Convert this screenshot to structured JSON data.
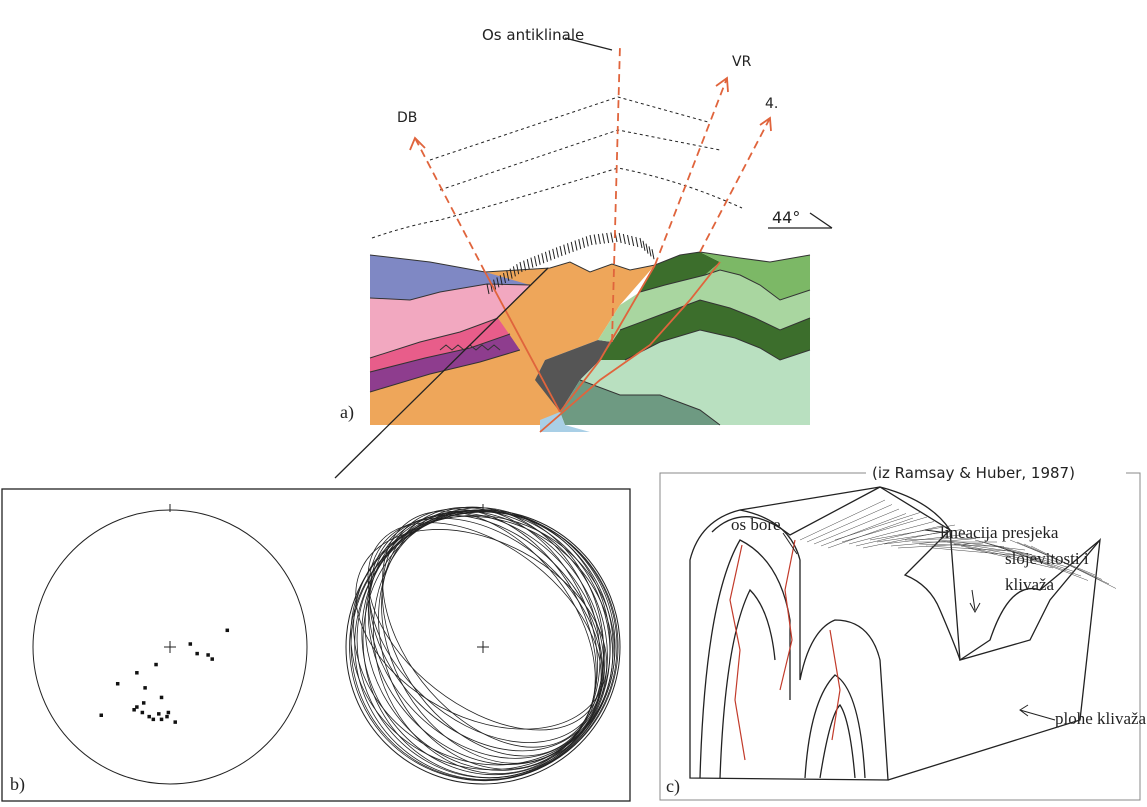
{
  "panel_a": {
    "label": "a)",
    "axis_label": "Os antiklinale",
    "ray_labels": {
      "db": "DB",
      "vr": "VR",
      "four": "4."
    },
    "angle_label": "44°",
    "colors": {
      "blue": "#7f88c4",
      "pink": "#f2a8c0",
      "magenta": "#e85d8a",
      "purple": "#8e3d8e",
      "orange": "#eea65a",
      "dark_gray": "#555555",
      "dark_green": "#3c6e2c",
      "green": "#7cb866",
      "light_green": "#a9d6a0",
      "pale_green": "#b9e0c0",
      "teal": "#6e9a82",
      "light_blue": "#a9cfe6",
      "fault_red": "#e0643c"
    }
  },
  "panel_b": {
    "label": "b)",
    "poles": [
      [
        0.42,
        -0.12
      ],
      [
        0.2,
        0.05
      ],
      [
        0.28,
        0.06
      ],
      [
        0.31,
        0.09
      ],
      [
        0.15,
        -0.02
      ],
      [
        -0.1,
        0.13
      ],
      [
        -0.24,
        0.19
      ],
      [
        -0.38,
        0.27
      ],
      [
        -0.18,
        0.3
      ],
      [
        -0.06,
        0.37
      ],
      [
        -0.24,
        0.44
      ],
      [
        -0.2,
        0.48
      ],
      [
        -0.15,
        0.51
      ],
      [
        -0.12,
        0.53
      ],
      [
        -0.06,
        0.53
      ],
      [
        -0.02,
        0.51
      ],
      [
        -0.01,
        0.48
      ],
      [
        0.04,
        0.55
      ],
      [
        -0.26,
        0.46
      ],
      [
        -0.5,
        0.5
      ],
      [
        -0.19,
        0.41
      ],
      [
        -0.08,
        0.49
      ]
    ],
    "great_circles": [
      {
        "rx": 0.97,
        "rot": -12
      },
      {
        "rx": 0.93,
        "rot": -18
      },
      {
        "rx": 0.89,
        "rot": -24
      },
      {
        "rx": 0.85,
        "rot": -30
      },
      {
        "rx": 0.8,
        "rot": -35
      },
      {
        "rx": 0.76,
        "rot": -40
      },
      {
        "rx": 0.71,
        "rot": -44
      },
      {
        "rx": 0.66,
        "rot": -48
      },
      {
        "rx": 0.95,
        "rot": -6
      },
      {
        "rx": 0.9,
        "rot": -9
      },
      {
        "rx": 0.83,
        "rot": -15
      },
      {
        "rx": 0.78,
        "rot": -21
      },
      {
        "rx": 0.73,
        "rot": -27
      },
      {
        "rx": 0.68,
        "rot": -33
      },
      {
        "rx": 0.62,
        "rot": -38
      },
      {
        "rx": 0.58,
        "rot": -52
      },
      {
        "rx": 0.87,
        "rot": -55
      },
      {
        "rx": 0.91,
        "rot": -60
      },
      {
        "rx": 0.64,
        "rot": -62
      },
      {
        "rx": 0.98,
        "rot": -2
      }
    ]
  },
  "panel_c": {
    "label": "c)",
    "source": "(iz Ramsay & Huber, 1987)",
    "labels": {
      "fold_axis": "os bore",
      "lineation_1": "lineacija presjeka",
      "lineation_2": "slojevitosti i",
      "lineation_3": "klivaža",
      "cleavage": "plohe klivaža"
    }
  }
}
